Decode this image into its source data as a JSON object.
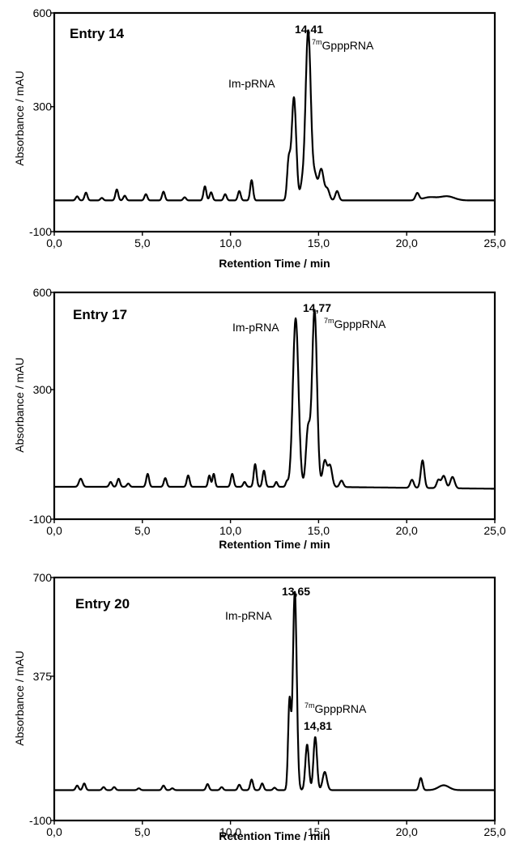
{
  "chart_data": [
    {
      "type": "line",
      "title": "Entry 14",
      "xlabel": "Retention Time / min",
      "ylabel": "Absorbance / mAU",
      "xlim": [
        0,
        25
      ],
      "ylim": [
        -100,
        600
      ],
      "xtick_labels": [
        "0,0",
        "5,0",
        "10,0",
        "15,0",
        "20,0",
        "25,0"
      ],
      "ytick_labels": [
        "600",
        "300",
        "-100"
      ],
      "annotations": [
        {
          "text": "14,41",
          "x": 14.41,
          "y": 600,
          "bold": true
        },
        {
          "sup": "7m",
          "text": "GpppRNA",
          "x": 14.75,
          "y": 545
        },
        {
          "text": "Im-pRNA",
          "x": 12.2,
          "y": 398
        }
      ],
      "baseline": 0,
      "peaks": [
        [
          1.3,
          13,
          0.08
        ],
        [
          1.8,
          25,
          0.08
        ],
        [
          2.7,
          8,
          0.08
        ],
        [
          3.55,
          35,
          0.08
        ],
        [
          4.0,
          15,
          0.08
        ],
        [
          5.2,
          20,
          0.08
        ],
        [
          6.2,
          28,
          0.08
        ],
        [
          7.4,
          10,
          0.08
        ],
        [
          8.55,
          45,
          0.08
        ],
        [
          8.9,
          26,
          0.08
        ],
        [
          9.7,
          20,
          0.08
        ],
        [
          10.5,
          30,
          0.08
        ],
        [
          11.2,
          65,
          0.08
        ],
        [
          13.3,
          120,
          0.09
        ],
        [
          13.6,
          330,
          0.13
        ],
        [
          14.05,
          40,
          0.1
        ],
        [
          14.41,
          545,
          0.15
        ],
        [
          14.8,
          70,
          0.12
        ],
        [
          15.15,
          100,
          0.14
        ],
        [
          15.5,
          35,
          0.12
        ],
        [
          16.05,
          30,
          0.1
        ],
        [
          20.6,
          22,
          0.1
        ],
        [
          21.3,
          10,
          0.4
        ],
        [
          22.3,
          13,
          0.4
        ]
      ]
    },
    {
      "type": "line",
      "title": "Entry 17",
      "xlabel": "Retention Time / min",
      "ylabel": "Absorbance / mAU",
      "xlim": [
        0,
        25
      ],
      "ylim": [
        -100,
        600
      ],
      "xtick_labels": [
        "0,0",
        "5,0",
        "10,0",
        "15,0",
        "20,0",
        "25,0"
      ],
      "ytick_labels": [
        "600",
        "300",
        "-100"
      ],
      "annotations": [
        {
          "text": "14,77",
          "x": 14.77,
          "y": 565,
          "bold": true
        },
        {
          "sup": "7m",
          "text": "GpppRNA",
          "x": 15.3,
          "y": 510
        },
        {
          "text": "Im-pRNA",
          "x": 10.2,
          "y": 500
        }
      ],
      "baseline": 0,
      "peaks": [
        [
          1.5,
          25,
          0.1
        ],
        [
          3.2,
          15,
          0.08
        ],
        [
          3.65,
          25,
          0.08
        ],
        [
          4.2,
          10,
          0.08
        ],
        [
          5.3,
          40,
          0.08
        ],
        [
          6.3,
          27,
          0.08
        ],
        [
          7.6,
          35,
          0.08
        ],
        [
          8.8,
          35,
          0.07
        ],
        [
          9.05,
          40,
          0.07
        ],
        [
          10.1,
          40,
          0.08
        ],
        [
          10.8,
          15,
          0.08
        ],
        [
          11.4,
          70,
          0.08
        ],
        [
          11.9,
          50,
          0.08
        ],
        [
          12.6,
          15,
          0.07
        ],
        [
          13.2,
          15,
          0.07
        ],
        [
          13.7,
          520,
          0.16
        ],
        [
          14.4,
          175,
          0.12
        ],
        [
          14.77,
          545,
          0.14
        ],
        [
          15.35,
          80,
          0.12
        ],
        [
          15.65,
          65,
          0.12
        ],
        [
          16.3,
          20,
          0.1
        ],
        [
          20.3,
          25,
          0.1
        ],
        [
          20.9,
          85,
          0.1
        ],
        [
          21.8,
          25,
          0.1
        ],
        [
          22.1,
          38,
          0.12
        ],
        [
          22.6,
          35,
          0.12
        ]
      ]
    },
    {
      "type": "line",
      "title": "Entry 20",
      "xlabel": "Retention Time / min",
      "ylabel": "Absorbance / mAU",
      "xlim": [
        0,
        25
      ],
      "ylim": [
        -100,
        700
      ],
      "xtick_labels": [
        "0,0",
        "5,0",
        "10,0",
        "15,0",
        "20,0",
        "25,0"
      ],
      "ytick_labels": [
        "700",
        "375",
        "-100"
      ],
      "annotations": [
        {
          "text": "13,65",
          "x": 13.65,
          "y": 672,
          "bold": true
        },
        {
          "text": "Im-pRNA",
          "x": 9.4,
          "y": 592
        },
        {
          "sup": "7m",
          "text": "GpppRNA",
          "x": 14.95,
          "y": 262
        },
        {
          "text": "14,81",
          "x": 14.9,
          "y": 196,
          "bold": true
        }
      ],
      "baseline": 0,
      "peaks": [
        [
          1.3,
          15,
          0.08
        ],
        [
          1.7,
          22,
          0.08
        ],
        [
          2.8,
          10,
          0.08
        ],
        [
          3.4,
          10,
          0.08
        ],
        [
          4.8,
          6,
          0.08
        ],
        [
          6.2,
          15,
          0.08
        ],
        [
          6.7,
          6,
          0.08
        ],
        [
          8.7,
          20,
          0.08
        ],
        [
          9.5,
          10,
          0.08
        ],
        [
          10.5,
          18,
          0.08
        ],
        [
          11.2,
          35,
          0.08
        ],
        [
          11.8,
          22,
          0.08
        ],
        [
          12.5,
          8,
          0.08
        ],
        [
          13.35,
          290,
          0.08
        ],
        [
          13.65,
          655,
          0.11
        ],
        [
          14.35,
          150,
          0.1
        ],
        [
          14.81,
          175,
          0.1
        ],
        [
          15.35,
          60,
          0.12
        ],
        [
          20.8,
          40,
          0.09
        ],
        [
          22.1,
          16,
          0.3
        ]
      ]
    }
  ]
}
